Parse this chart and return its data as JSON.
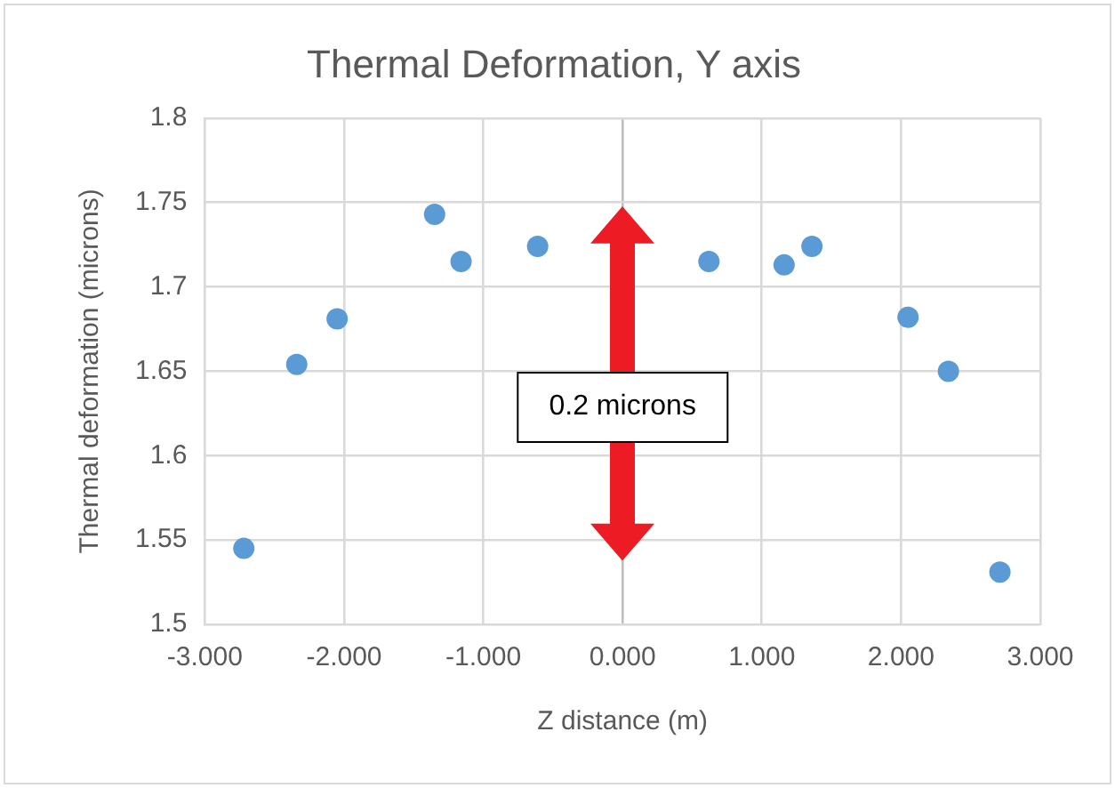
{
  "chart_data": {
    "type": "scatter",
    "title": "Thermal Deformation, Y axis",
    "xlabel": "Z distance (m)",
    "ylabel": "Thermal deformation (microns)",
    "series": [
      {
        "color": "#5b9bd5",
        "x": [
          -2.72,
          -2.34,
          -2.05,
          -1.35,
          -1.16,
          -0.61,
          0.62,
          1.16,
          1.36,
          2.05,
          2.34,
          2.71
        ],
        "values": [
          1.545,
          1.654,
          1.681,
          1.743,
          1.715,
          1.724,
          1.715,
          1.713,
          1.724,
          1.682,
          1.65,
          1.531
        ]
      }
    ],
    "xlim": [
      -3,
      3
    ],
    "xticks": [
      {
        "value": -3,
        "label": "-3.000"
      },
      {
        "value": -2,
        "label": "-2.000"
      },
      {
        "value": -1,
        "label": "-1.000"
      },
      {
        "value": 0,
        "label": "0.000"
      },
      {
        "value": 1,
        "label": "1.000"
      },
      {
        "value": 2,
        "label": "2.000"
      },
      {
        "value": 3,
        "label": "3.000"
      }
    ],
    "ylim": [
      1.5,
      1.8
    ],
    "yticks": [
      1.5,
      1.55,
      1.6,
      1.65,
      1.7,
      1.75,
      1.8
    ],
    "grid": true,
    "legend": false,
    "marker": "circle",
    "annotations": [
      "0.2 microns"
    ]
  }
}
